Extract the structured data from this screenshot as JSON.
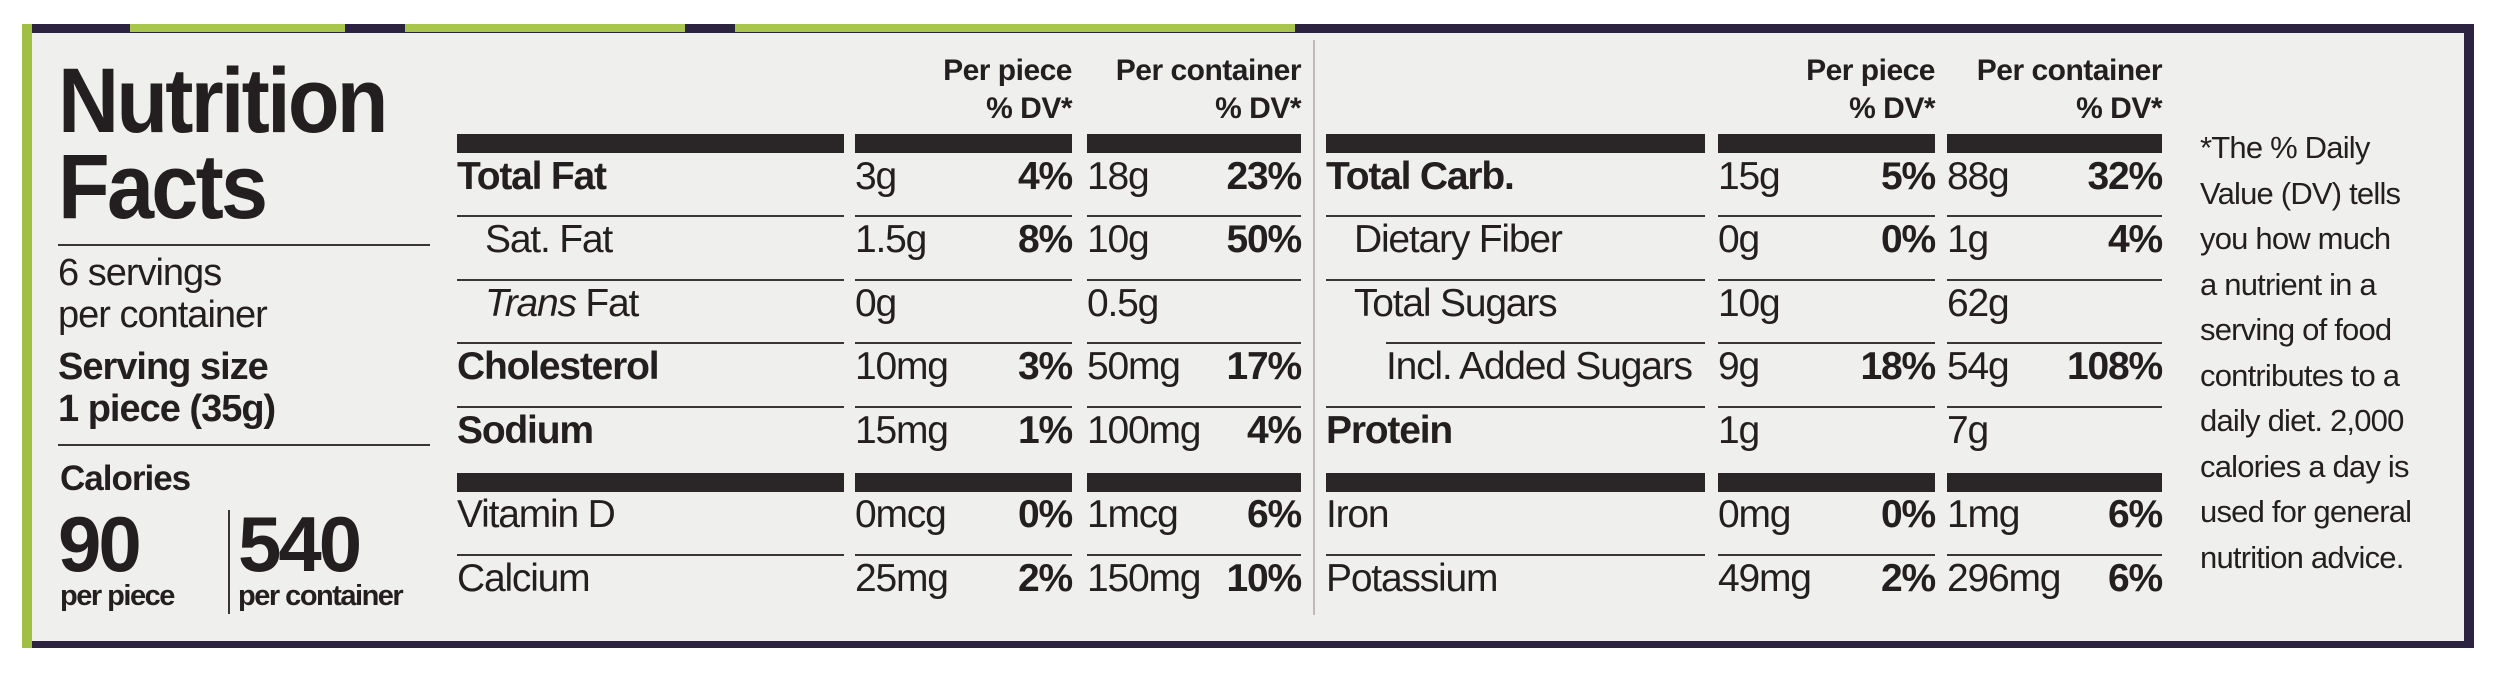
{
  "label": {
    "title_line1": "Nutrition",
    "title_line2": "Facts",
    "servings_line1": "6 servings",
    "servings_line2": "per container",
    "serving_size_label": "Serving size",
    "serving_size_value": "1 piece (35g)",
    "calories_label": "Calories",
    "calories_per_piece": "90",
    "calories_per_piece_label": "per piece",
    "calories_per_container": "540",
    "calories_per_container_label": "per container"
  },
  "headers": {
    "per_piece": "Per piece",
    "per_container": "Per container",
    "dv": "% DV*"
  },
  "left_table": [
    {
      "name": "Total Fat",
      "bold": true,
      "indent": 0,
      "pa": "3g",
      "pd": "4%",
      "ca": "18g",
      "cd": "23%"
    },
    {
      "name": "Sat. Fat",
      "bold": false,
      "indent": 1,
      "pa": "1.5g",
      "pd": "8%",
      "ca": "10g",
      "cd": "50%"
    },
    {
      "name_italic": "Trans",
      "name": " Fat",
      "bold": false,
      "indent": 1,
      "pa": "0g",
      "pd": "",
      "ca": "0.5g",
      "cd": ""
    },
    {
      "name": "Cholesterol",
      "bold": true,
      "indent": 0,
      "pa": "10mg",
      "pd": "3%",
      "ca": "50mg",
      "cd": "17%"
    },
    {
      "name": "Sodium",
      "bold": true,
      "indent": 0,
      "pa": "15mg",
      "pd": "1%",
      "ca": "100mg",
      "cd": "4%"
    },
    {
      "name": "Vitamin D",
      "bold": false,
      "indent": 0,
      "pa": "0mcg",
      "pd": "0%",
      "ca": "1mcg",
      "cd": "6%"
    },
    {
      "name": "Calcium",
      "bold": false,
      "indent": 0,
      "pa": "25mg",
      "pd": "2%",
      "ca": "150mg",
      "cd": "10%"
    }
  ],
  "right_table": [
    {
      "name": "Total Carb.",
      "bold": true,
      "indent": 0,
      "pa": "15g",
      "pd": "5%",
      "ca": "88g",
      "cd": "32%"
    },
    {
      "name": "Dietary Fiber",
      "bold": false,
      "indent": 1,
      "pa": "0g",
      "pd": "0%",
      "ca": "1g",
      "cd": "4%"
    },
    {
      "name": "Total Sugars",
      "bold": false,
      "indent": 1,
      "pa": "10g",
      "pd": "",
      "ca": "62g",
      "cd": ""
    },
    {
      "name": "Incl. Added Sugars",
      "bold": false,
      "indent": 2,
      "pa": "9g",
      "pd": "18%",
      "ca": "54g",
      "cd": "108%"
    },
    {
      "name": "Protein",
      "bold": true,
      "indent": 0,
      "pa": "1g",
      "pd": "",
      "ca": "7g",
      "cd": ""
    },
    {
      "name": "Iron",
      "bold": false,
      "indent": 0,
      "pa": "0mg",
      "pd": "0%",
      "ca": "1mg",
      "cd": "6%"
    },
    {
      "name": "Potassium",
      "bold": false,
      "indent": 0,
      "pa": "49mg",
      "pd": "2%",
      "ca": "296mg",
      "cd": "6%"
    }
  ],
  "footnote": [
    "*The % Daily",
    "Value (DV) tells",
    "you how much",
    "a nutrient in a",
    "serving of food",
    "contributes to a",
    "daily diet. 2,000",
    "calories a day is",
    "used for general",
    "nutrition advice."
  ],
  "colors": {
    "frame": "#2b2340",
    "accent_green": "#9fbf45",
    "panel": "#efefed",
    "ink": "#231f20"
  }
}
